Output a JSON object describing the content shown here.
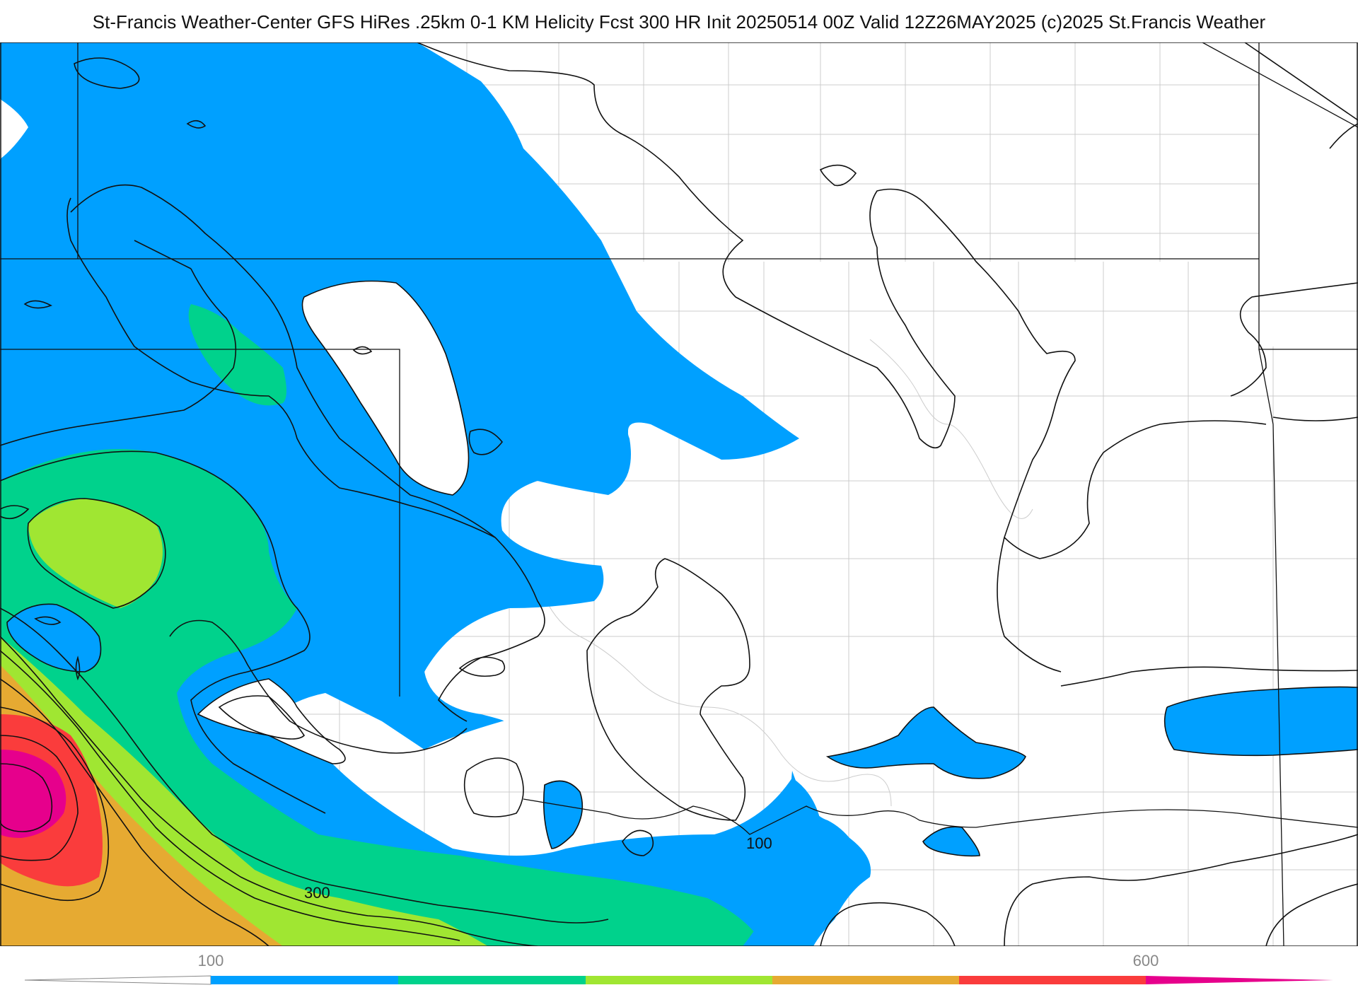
{
  "title": "St-Francis Weather-Center GFS HiRes .25km 0-1 KM Helicity Fcst 300 HR Init 20250514 00Z  Valid 12Z26MAY2025    (c)2025 St.Francis Weather",
  "map": {
    "contour_labels": [
      "100",
      "300"
    ],
    "fill_colors": {
      "blue": "#00a0ff",
      "teal": "#00d28c",
      "lime": "#a0e632",
      "orange": "#e6aa32",
      "red": "#fa3c3c",
      "magenta": "#e6008c"
    },
    "boundary_color": "#111111",
    "county_color": "#cccccc"
  },
  "colorbar": {
    "tick_labels": [
      "100",
      "600"
    ],
    "colors": [
      "#00a0ff",
      "#00d28c",
      "#a0e632",
      "#e6aa32",
      "#fa3c3c",
      "#e6008c"
    ]
  }
}
